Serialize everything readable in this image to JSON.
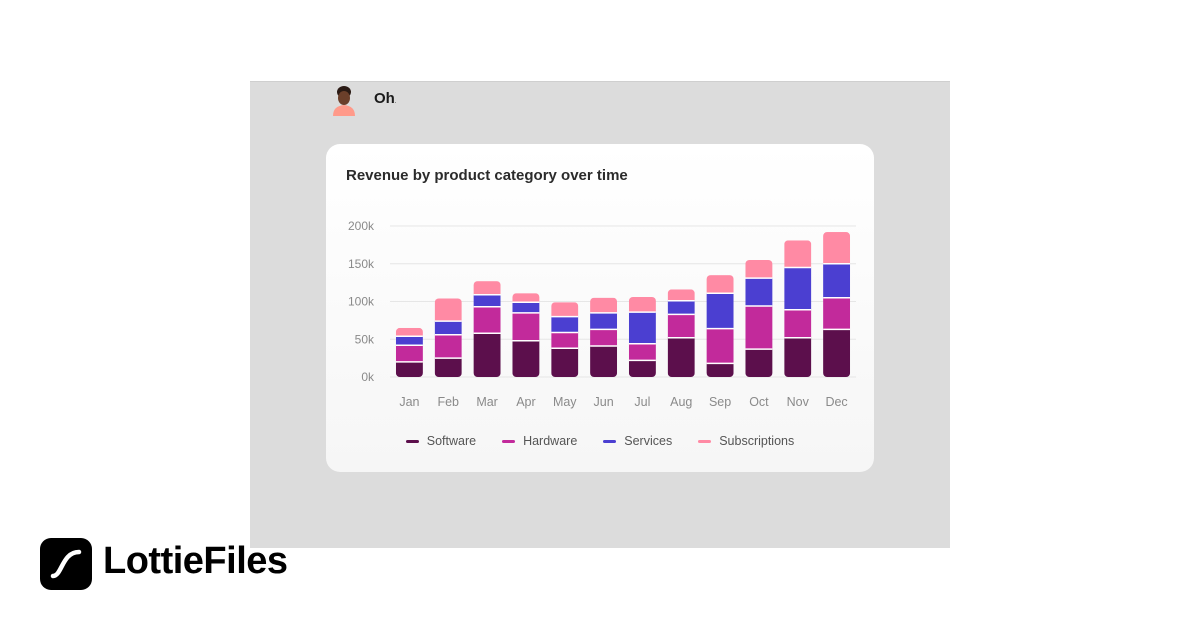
{
  "header": {
    "brand_mark": "Oh",
    "brand_mark_suffix": "."
  },
  "branding": {
    "name": "LottieFiles"
  },
  "colors": {
    "software": "#5c0f4c",
    "hardware": "#c22a9b",
    "services": "#4b3fd1",
    "subscriptions": "#ff8aa4",
    "grid": "#e6e6e6",
    "tick_text": "#8a8a8a"
  },
  "chart_data": {
    "type": "bar",
    "stacked": true,
    "title": "Revenue by product category over time",
    "xlabel": "",
    "ylabel": "",
    "ylim": [
      0,
      200000
    ],
    "y_ticks": [
      "0k",
      "50k",
      "100k",
      "150k",
      "200k"
    ],
    "grid": true,
    "legend_position": "bottom",
    "categories": [
      "Jan",
      "Feb",
      "Mar",
      "Apr",
      "May",
      "Jun",
      "Jul",
      "Aug",
      "Sep",
      "Oct",
      "Nov",
      "Dec"
    ],
    "series": [
      {
        "name": "Software",
        "values": [
          20000,
          25000,
          58000,
          48000,
          38000,
          41000,
          22000,
          52000,
          18000,
          37000,
          52000,
          63000
        ]
      },
      {
        "name": "Hardware",
        "values": [
          22000,
          31000,
          35000,
          37000,
          21000,
          22000,
          22000,
          31000,
          46000,
          57000,
          37000,
          42000
        ]
      },
      {
        "name": "Services",
        "values": [
          12000,
          18000,
          16000,
          14000,
          21000,
          22000,
          42000,
          18000,
          47000,
          37000,
          56000,
          45000
        ]
      },
      {
        "name": "Subscriptions",
        "values": [
          11000,
          30000,
          18000,
          12000,
          19000,
          20000,
          20000,
          15000,
          24000,
          24000,
          36000,
          42000
        ]
      }
    ]
  }
}
